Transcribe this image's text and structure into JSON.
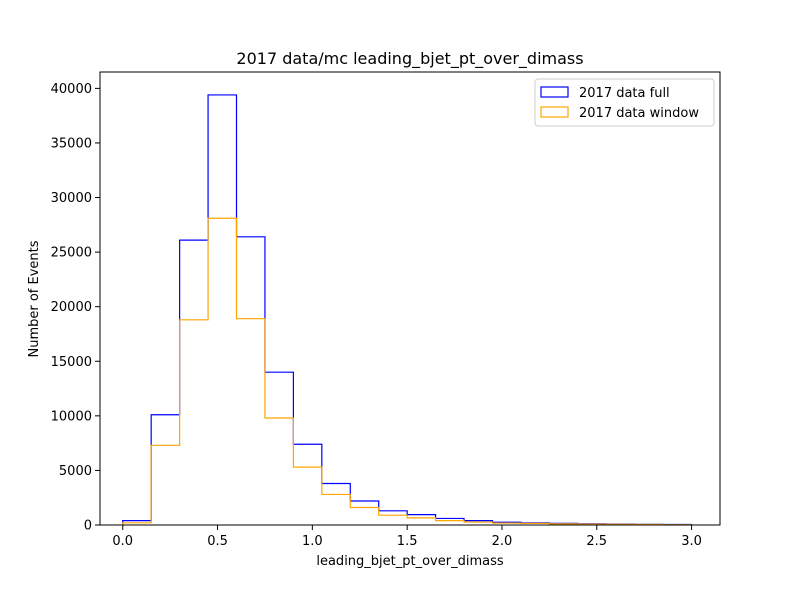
{
  "chart_data": {
    "type": "histogram",
    "title": "2017 data/mc leading_bjet_pt_over_dimass",
    "xlabel": "leading_bjet_pt_over_dimass",
    "ylabel": "Number of Events",
    "xlim": [
      -0.12,
      3.15
    ],
    "ylim": [
      0,
      41500
    ],
    "xticks": [
      0.0,
      0.5,
      1.0,
      1.5,
      2.0,
      2.5,
      3.0
    ],
    "xtick_labels": [
      "0.0",
      "0.5",
      "1.0",
      "1.5",
      "2.0",
      "2.5",
      "3.0"
    ],
    "yticks": [
      0,
      5000,
      10000,
      15000,
      20000,
      25000,
      30000,
      35000,
      40000
    ],
    "ytick_labels": [
      "0",
      "5000",
      "10000",
      "15000",
      "20000",
      "25000",
      "30000",
      "35000",
      "40000"
    ],
    "bin_edges": [
      0.0,
      0.15,
      0.3,
      0.45,
      0.6,
      0.75,
      0.9,
      1.05,
      1.2,
      1.35,
      1.5,
      1.65,
      1.8,
      1.95,
      2.1,
      2.25,
      2.4,
      2.55,
      2.7,
      2.85,
      3.0
    ],
    "series": [
      {
        "name": "2017 data full",
        "color": "#0000ff",
        "values": [
          400,
          10100,
          26100,
          39400,
          26400,
          14000,
          7400,
          3800,
          2200,
          1300,
          950,
          600,
          400,
          250,
          200,
          150,
          100,
          80,
          60,
          50
        ]
      },
      {
        "name": "2017 data window",
        "color": "#ffa500",
        "values": [
          200,
          7300,
          18800,
          28100,
          18900,
          9800,
          5300,
          2800,
          1600,
          900,
          650,
          400,
          270,
          180,
          150,
          100,
          70,
          55,
          45,
          30
        ]
      }
    ],
    "grid": false,
    "legend_position": "top-right"
  }
}
